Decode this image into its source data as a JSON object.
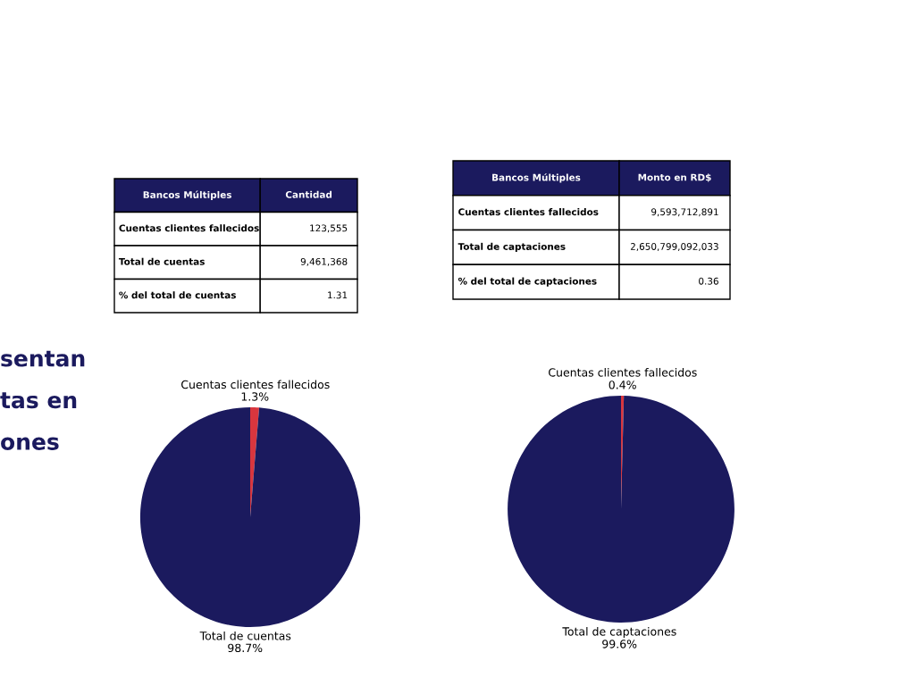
{
  "chart_data": [
    {
      "type": "other",
      "annotations": [
        "sentan",
        "tas en",
        "ones"
      ]
    },
    {
      "type": "other",
      "categories": [
        "Bancos Múltiples",
        "Cantidad"
      ],
      "y_categories": [
        "Cuentas clientes fallecidos",
        "Total de cuentas",
        "% del total de cuentas"
      ],
      "cell_labels": [
        [
          "123,555"
        ],
        [
          "9,461,368"
        ],
        [
          "1.31"
        ]
      ]
    },
    {
      "type": "other",
      "categories": [
        "Bancos Múltiples",
        "Monto en RD$"
      ],
      "y_categories": [
        "Cuentas clientes fallecidos",
        "Total de captaciones",
        "% del total de captaciones"
      ],
      "cell_labels": [
        [
          "9,593,712,891"
        ],
        [
          "2,650,799,092,033"
        ],
        [
          "0.36"
        ]
      ]
    },
    {
      "type": "pie",
      "categories": [
        "Cuentas clientes fallecidos",
        "Total de cuentas"
      ],
      "values": [
        1.3,
        98.7
      ],
      "colors": [
        "#d9363e",
        "#1b1a5e"
      ],
      "value_labels": [
        "1.3%",
        "98.7%"
      ]
    },
    {
      "type": "pie",
      "categories": [
        "Cuentas clientes fallecidos",
        "Total de captaciones"
      ],
      "values": [
        0.4,
        99.6
      ],
      "colors": [
        "#d9363e",
        "#1b1a5e"
      ],
      "value_labels": [
        "0.4%",
        "99.6%"
      ]
    }
  ]
}
